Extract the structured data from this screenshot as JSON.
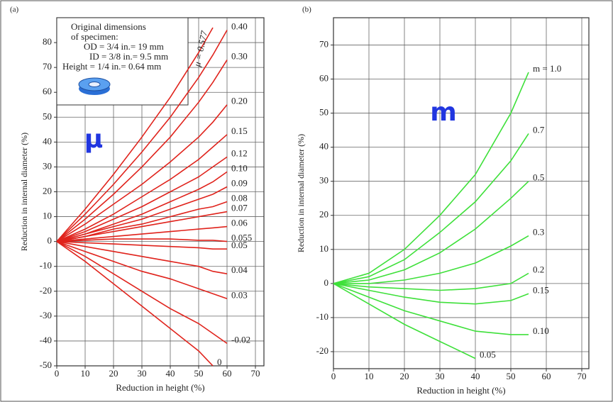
{
  "chart_data": [
    {
      "type": "line",
      "panel": "(a)",
      "x_label": "Reduction in height (%)",
      "y_label": "Reduction in internal diameter (%)",
      "symbol": "μ",
      "annotations": [
        "Original dimensions",
        "of specimen:",
        "OD = 3/4 in.= 19 mm",
        "ID = 3/8 in.= 9.5 mm",
        "Height = 1/4 in.= 0.64 mm"
      ],
      "x": [
        0,
        10,
        20,
        30,
        40,
        50,
        55,
        60
      ],
      "xlim": [
        0,
        73
      ],
      "ylim": [
        -50,
        90
      ],
      "xticks": [
        0,
        10,
        20,
        30,
        40,
        50,
        60,
        70
      ],
      "yticks": [
        -50,
        -40,
        -30,
        -20,
        -10,
        0,
        10,
        20,
        30,
        40,
        50,
        60,
        70,
        80
      ],
      "grid": true,
      "color": "#e0231c",
      "series": [
        {
          "name": "μ = 0.577",
          "values": [
            0,
            13,
            27,
            42,
            58,
            76,
            86,
            null
          ]
        },
        {
          "name": "0.40",
          "values": [
            0,
            11,
            23,
            36,
            50,
            66,
            75,
            85
          ]
        },
        {
          "name": "0.30",
          "values": [
            0,
            9,
            19,
            30,
            42,
            56,
            64,
            73
          ]
        },
        {
          "name": "0.20",
          "values": [
            0,
            7,
            15,
            23,
            32,
            42,
            48,
            55
          ]
        },
        {
          "name": "0.15",
          "values": [
            0,
            5,
            11,
            18,
            25,
            33,
            38,
            43
          ]
        },
        {
          "name": "0.12",
          "values": [
            0,
            4,
            9,
            14,
            20,
            26,
            30,
            34
          ]
        },
        {
          "name": "0.10",
          "values": [
            0,
            3,
            7,
            11,
            16,
            21,
            24,
            28
          ]
        },
        {
          "name": "0.09",
          "values": [
            0,
            3,
            6,
            9,
            13,
            17,
            19,
            22
          ]
        },
        {
          "name": "0.08",
          "values": [
            0,
            2,
            5,
            7,
            10,
            13,
            14,
            16
          ]
        },
        {
          "name": "0.07",
          "values": [
            0,
            2,
            4,
            6,
            8,
            10,
            11,
            12
          ]
        },
        {
          "name": "0.06",
          "values": [
            0,
            1,
            2,
            3,
            4,
            5,
            5.5,
            6
          ]
        },
        {
          "name": "0.055",
          "values": [
            0,
            0.5,
            1,
            1,
            1,
            0.5,
            0.5,
            0
          ]
        },
        {
          "name": "0.05",
          "values": [
            0,
            -0.5,
            -1,
            -1.5,
            -2,
            -2.5,
            -3,
            -3
          ]
        },
        {
          "name": "0.04",
          "values": [
            0,
            -2,
            -4,
            -6,
            -8,
            -10,
            -12,
            -13
          ]
        },
        {
          "name": "0.03",
          "values": [
            0,
            -4,
            -8,
            -12,
            -15,
            -19,
            -21,
            -23
          ]
        },
        {
          "name": "-0.02",
          "values": [
            0,
            -6,
            -13,
            -20,
            -27,
            -33,
            -37,
            -41
          ]
        },
        {
          "name": "0",
          "values": [
            0,
            -8,
            -17,
            -26,
            -35,
            -44,
            -50,
            null
          ]
        }
      ]
    },
    {
      "type": "line",
      "panel": "(b)",
      "x_label": "Reduction in height (%)",
      "y_label": "Reduction in internal diameter (%)",
      "symbol": "m",
      "x": [
        0,
        10,
        20,
        30,
        40,
        50,
        55
      ],
      "xlim": [
        0,
        72
      ],
      "ylim": [
        -25,
        78
      ],
      "xticks": [
        0,
        10,
        20,
        30,
        40,
        50,
        60,
        70
      ],
      "yticks": [
        -20,
        -10,
        0,
        10,
        20,
        30,
        40,
        50,
        60,
        70
      ],
      "grid": true,
      "color": "#3ee03a",
      "series": [
        {
          "name": "m = 1.0",
          "values": [
            0,
            3,
            10,
            20,
            32,
            50,
            62
          ]
        },
        {
          "name": "0.7",
          "values": [
            0,
            2,
            7,
            15,
            24,
            36,
            44
          ]
        },
        {
          "name": "0.5",
          "values": [
            0,
            1,
            4,
            9,
            16,
            25,
            30
          ]
        },
        {
          "name": "0.3",
          "values": [
            0,
            0,
            1,
            3,
            6,
            11,
            14
          ]
        },
        {
          "name": "0.2",
          "values": [
            0,
            -1,
            -1.5,
            -2,
            -1.5,
            0,
            3
          ]
        },
        {
          "name": "0.15",
          "values": [
            0,
            -2,
            -4,
            -5.5,
            -6,
            -5,
            -3
          ]
        },
        {
          "name": "0.10",
          "values": [
            0,
            -4,
            -8,
            -11,
            -14,
            -15,
            -15
          ]
        },
        {
          "name": "0.05",
          "values": [
            0,
            -6,
            -12,
            -17,
            -22,
            null,
            null
          ]
        }
      ]
    }
  ]
}
